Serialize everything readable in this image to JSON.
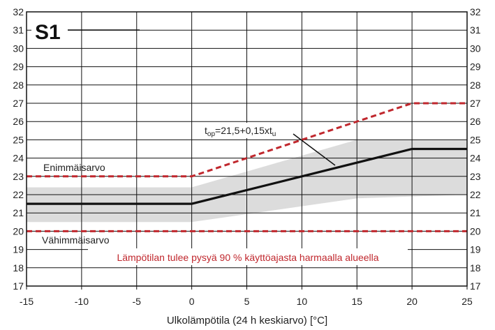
{
  "chart_data": {
    "type": "line",
    "badge": "S1",
    "xlabel": "Ulkolämpötila (24 h keskiarvo) [°C]",
    "ylabel": "",
    "xlim": [
      -15,
      25
    ],
    "ylim": [
      17,
      32
    ],
    "x_ticks": [
      "-15",
      "-10",
      "-5",
      "0",
      "5",
      "10",
      "15",
      "20",
      "25"
    ],
    "x_tick_values": [
      -15,
      -10,
      -5,
      0,
      5,
      10,
      15,
      20,
      25
    ],
    "y_ticks": [
      "17",
      "18",
      "19",
      "20",
      "21",
      "22",
      "23",
      "24",
      "25",
      "26",
      "27",
      "28",
      "29",
      "30",
      "31",
      "32"
    ],
    "y_tick_values": [
      17,
      18,
      19,
      20,
      21,
      22,
      23,
      24,
      25,
      26,
      27,
      28,
      29,
      30,
      31,
      32
    ],
    "grid": true,
    "series": [
      {
        "name": "Enimmäisarvo",
        "style": "dashed",
        "color": "#c0272d",
        "x": [
          -15,
          0,
          20,
          25
        ],
        "y": [
          23,
          23,
          27,
          27
        ]
      },
      {
        "name": "Vähimmäisarvo",
        "style": "dashed",
        "color": "#c0272d",
        "x": [
          -15,
          25
        ],
        "y": [
          20,
          20
        ]
      },
      {
        "name": "t_op",
        "style": "solid",
        "color": "#111111",
        "x": [
          -15,
          0,
          20,
          25
        ],
        "y": [
          21.5,
          21.5,
          24.5,
          24.5
        ]
      }
    ],
    "band": {
      "name": "90 % käyttöajasta",
      "color": "#dcdcdc",
      "x": [
        -15,
        0,
        15,
        25
      ],
      "upper": [
        22.4,
        22.4,
        25.0,
        25.0
      ],
      "lower": [
        20.5,
        20.5,
        21.8,
        22.0
      ]
    },
    "annotations": {
      "max_label": "Enimmäisarvo",
      "min_label": "Vähimmäisarvo",
      "note": "Lämpötilan tulee pysyä 90 % käyttöajasta harmaalla alueella",
      "formula_t": "t",
      "formula_sub1": "op",
      "formula_mid": "=21,5+0,15xt",
      "formula_sub2": "u"
    }
  }
}
